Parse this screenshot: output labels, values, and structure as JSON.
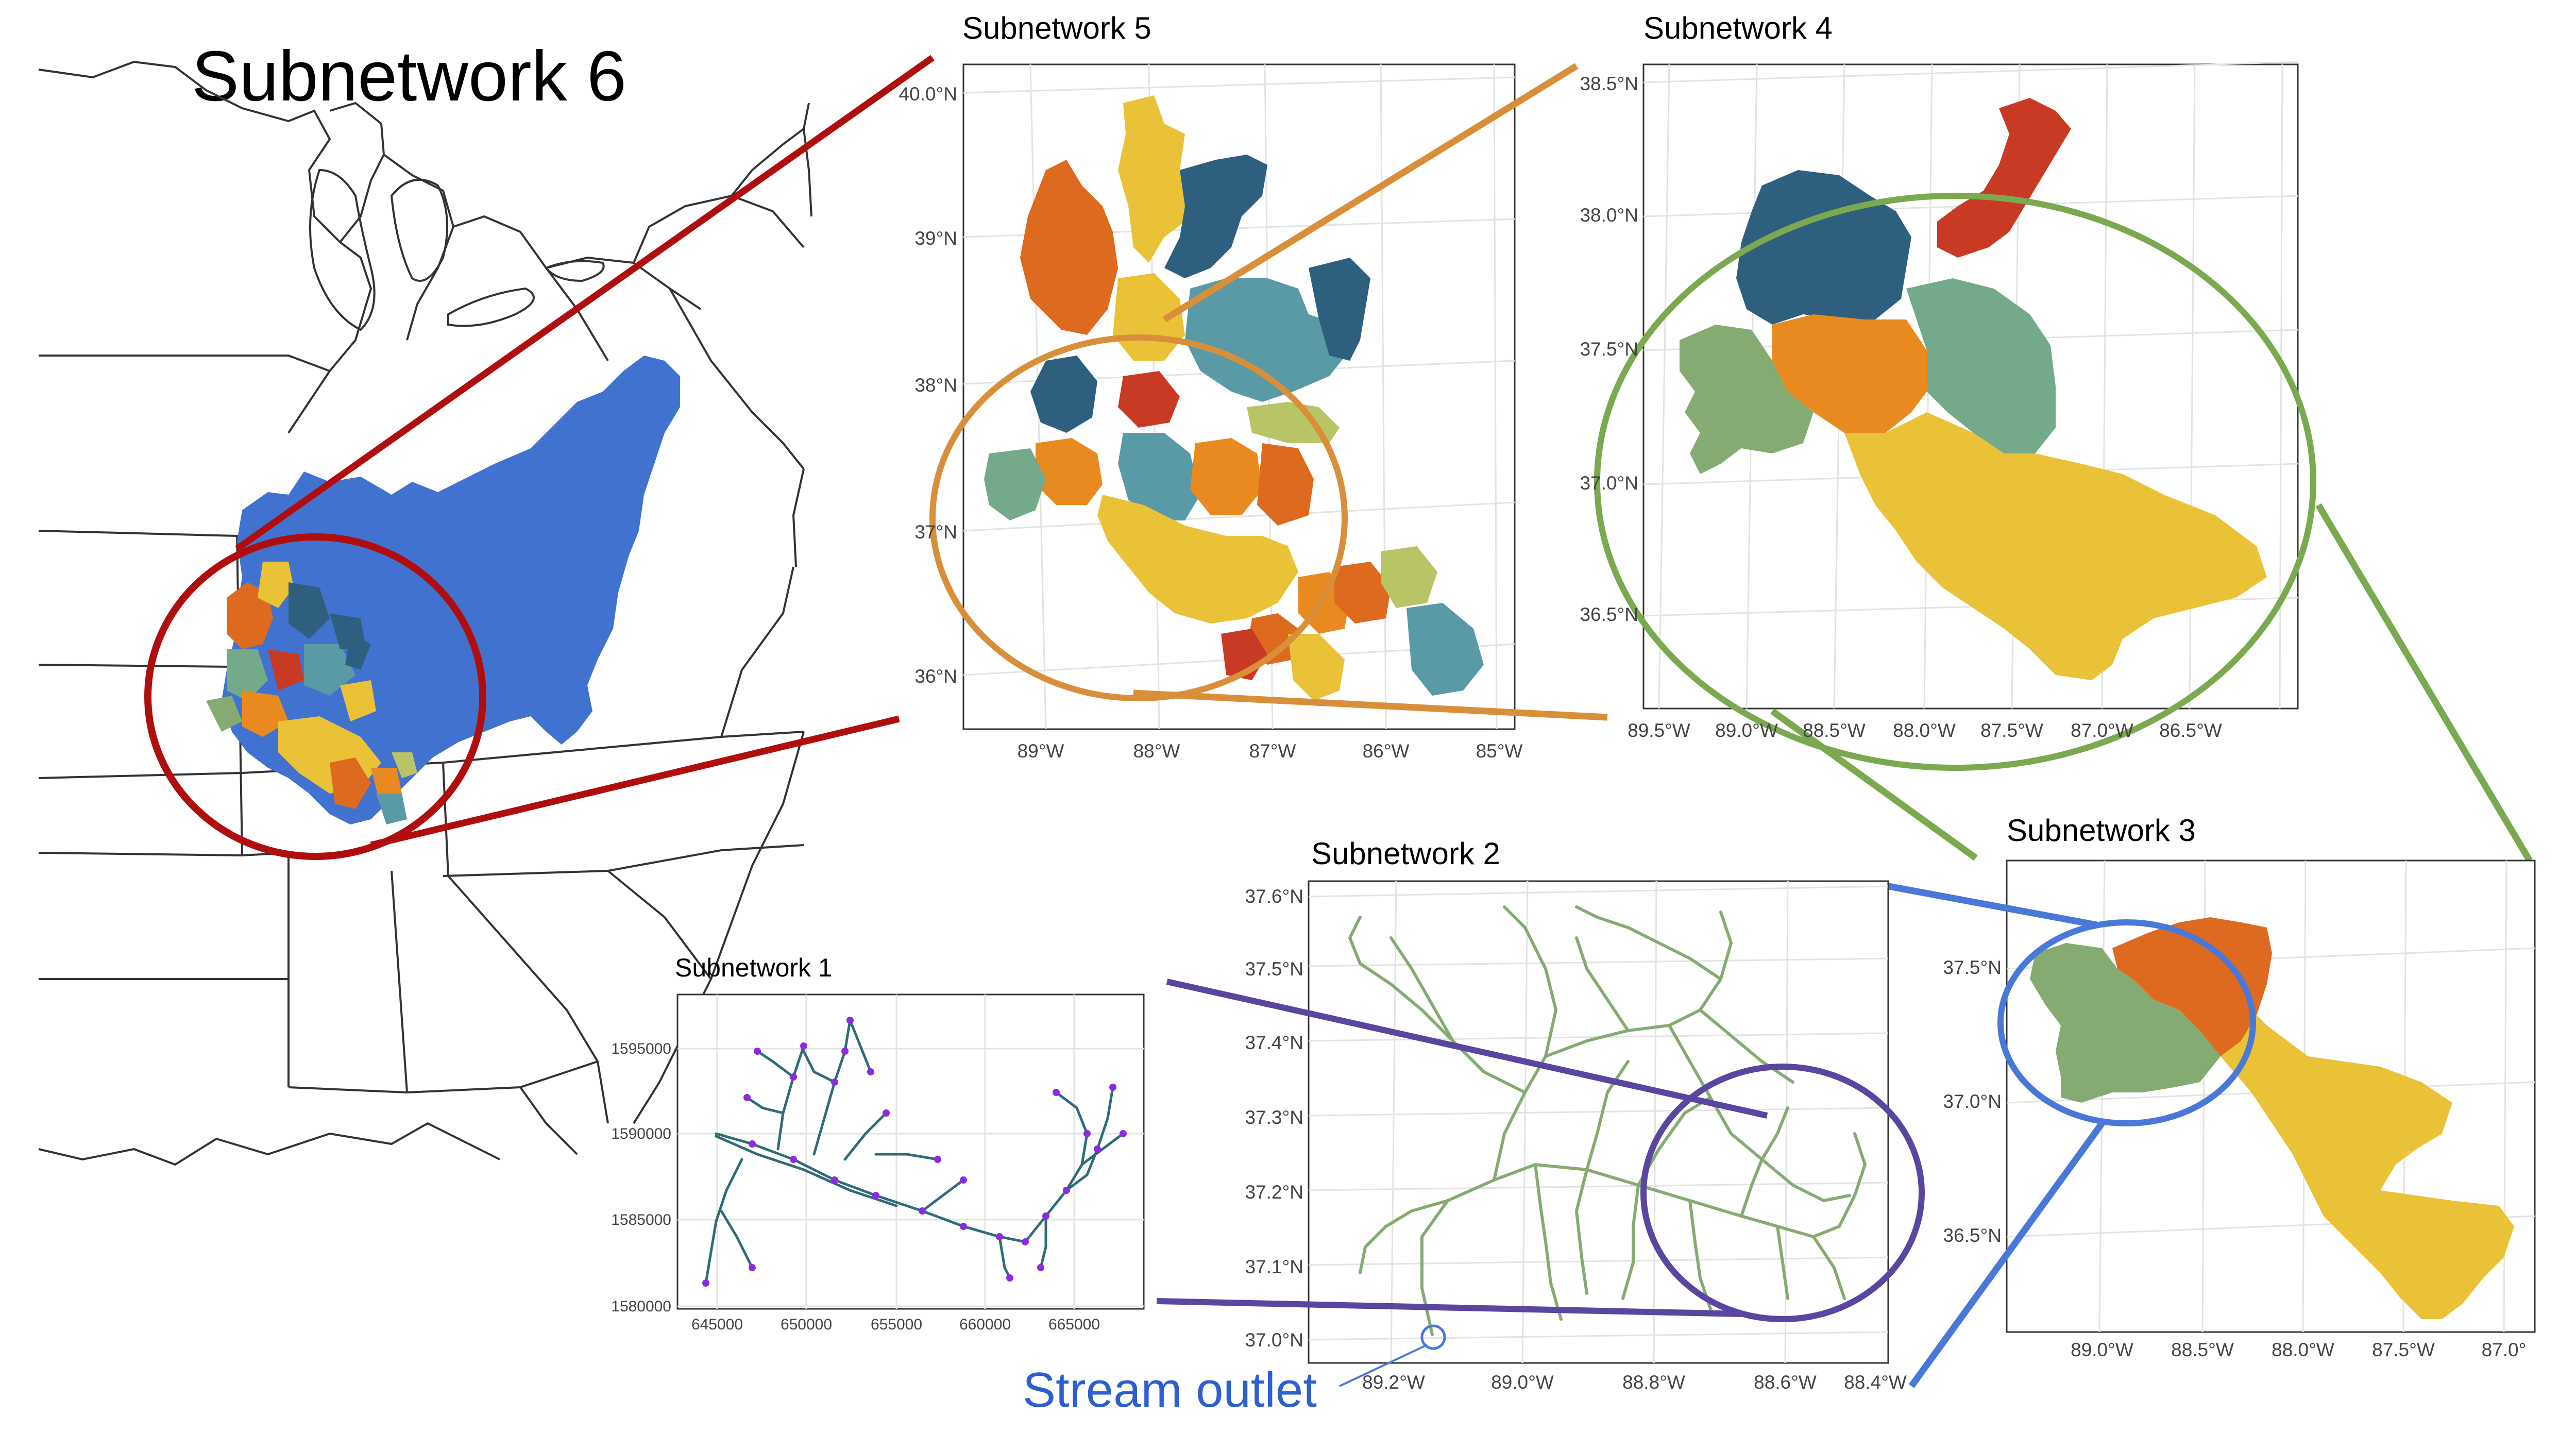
{
  "colors": {
    "dark_red": "#b00e0e",
    "orange_ellipse": "#d98f3a",
    "green_ellipse": "#7ba94f",
    "blue_ellipse": "#4a78d8",
    "purple_ellipse": "#5a45a0",
    "basin_blue": "#4272cf",
    "yellow": "#e9c238",
    "burnt_orange": "#dd6a1f",
    "orange": "#e88a1f",
    "teal_dark": "#2f5f7e",
    "teal_mid": "#5a9aa6",
    "sage": "#74a989",
    "green": "#86ab72",
    "red": "#c93a25",
    "olive": "#b9c466",
    "stream_outlet": "#2d5fd0",
    "network_line": "#2f6b78",
    "network_node": "#8a2be2"
  },
  "panels": {
    "p6": {
      "title": "Subnetwork 6"
    },
    "p5": {
      "title": "Subnetwork 5",
      "y_ticks": [
        "40.0°N",
        "39°N",
        "38°N",
        "37°N",
        "36°N"
      ],
      "x_ticks": [
        "89°W",
        "88°W",
        "87°W",
        "86°W",
        "85°W"
      ]
    },
    "p4": {
      "title": "Subnetwork 4",
      "y_ticks": [
        "38.5°N",
        "38.0°N",
        "37.5°N",
        "37.0°N",
        "36.5°N"
      ],
      "x_ticks": [
        "89.5°W",
        "89.0°W",
        "88.5°W",
        "88.0°W",
        "87.5°W",
        "87.0°W",
        "86.5°W"
      ]
    },
    "p3": {
      "title": "Subnetwork 3",
      "y_ticks": [
        "37.5°N",
        "37.0°N",
        "36.5°N"
      ],
      "x_ticks": [
        "89.0°W",
        "88.5°W",
        "88.0°W",
        "87.5°W",
        "87.0°"
      ]
    },
    "p2": {
      "title": "Subnetwork 2",
      "y_ticks": [
        "37.6°N",
        "37.5°N",
        "37.4°N",
        "37.3°N",
        "37.2°N",
        "37.1°N",
        "37.0°N"
      ],
      "x_ticks": [
        "89.2°W",
        "89.0°W",
        "88.8°W",
        "88.6°W",
        "88.4°W"
      ]
    },
    "p1": {
      "title": "Subnetwork 1",
      "y_ticks": [
        "1595000",
        "1590000",
        "1585000",
        "1580000"
      ],
      "x_ticks": [
        "645000",
        "650000",
        "655000",
        "660000",
        "665000"
      ]
    }
  },
  "annotation": {
    "stream_outlet": "Stream outlet"
  }
}
